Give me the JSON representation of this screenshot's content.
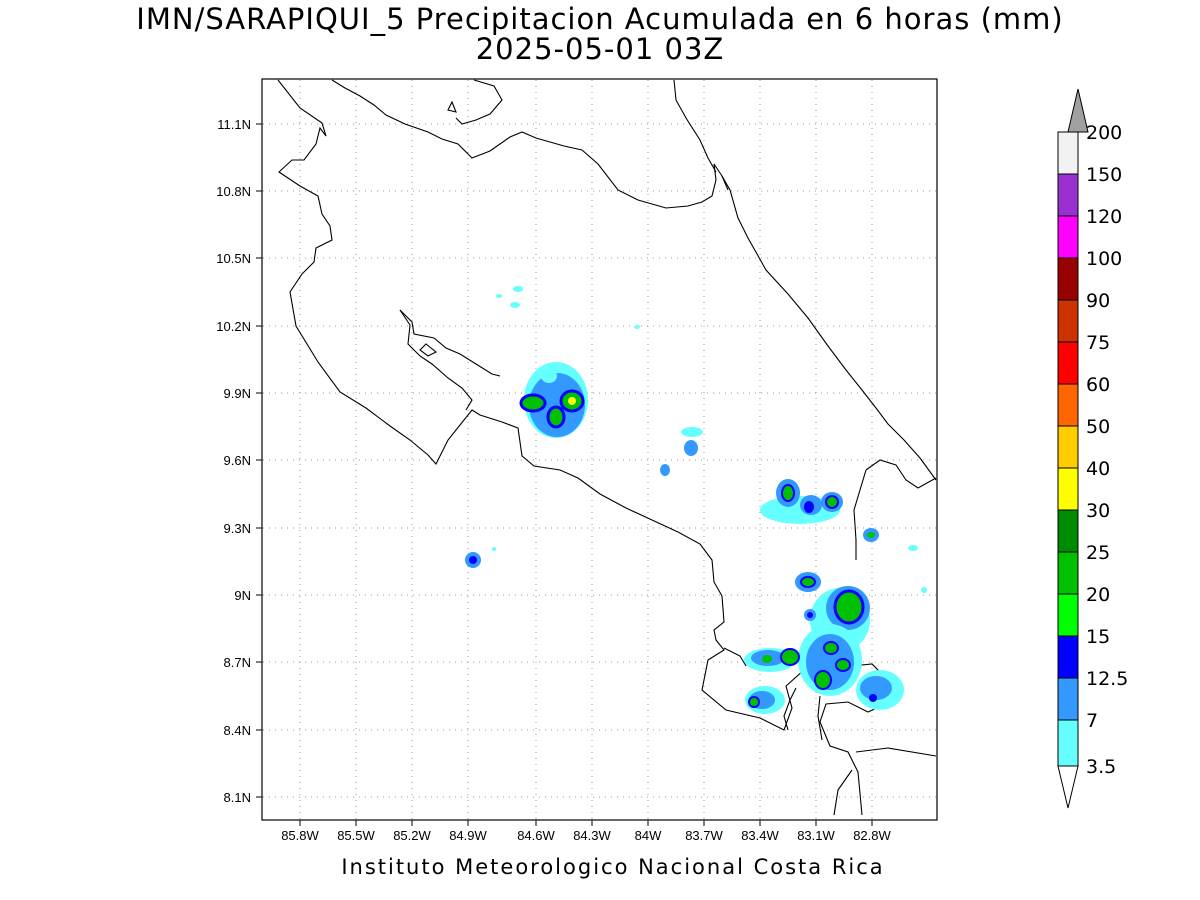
{
  "title": {
    "line1": "IMN/SARAPIQUI_5 Precipitacion Acumulada en 6 horas (mm)",
    "line2": "2025-05-01 03Z"
  },
  "footer": "Instituto Meteorologico Nacional Costa Rica",
  "map": {
    "lon_ticks": [
      "85.8W",
      "85.5W",
      "85.2W",
      "84.9W",
      "84.6W",
      "84.3W",
      "84W",
      "83.7W",
      "83.4W",
      "83.1W",
      "82.8W"
    ],
    "lat_ticks": [
      "11.1N",
      "10.8N",
      "10.5N",
      "10.2N",
      "9.9N",
      "9.6N",
      "9.3N",
      "9N",
      "8.7N",
      "8.4N",
      "8.1N"
    ],
    "grid": true,
    "coastline_color": "#000000"
  },
  "legend": {
    "labels": [
      "200",
      "150",
      "120",
      "100",
      "90",
      "75",
      "60",
      "50",
      "40",
      "30",
      "25",
      "20",
      "15",
      "12.5",
      "7",
      "3.5"
    ],
    "colors": [
      "#f2f2f2",
      "#9b30d0",
      "#ff00ff",
      "#990000",
      "#cc3300",
      "#ff0000",
      "#ff6600",
      "#ffcc00",
      "#ffff00",
      "#008c00",
      "#00c000",
      "#00ff00",
      "#0000ff",
      "#3399ff",
      "#66ffff"
    ],
    "over_color": "#a0a0a0",
    "under_color": "#ffffff"
  },
  "precip_cells": [
    {
      "region": "84.65W 9.85N",
      "level_color": "#00c000"
    },
    {
      "region": "84.45W 9.85N",
      "level_color": "#ffff00"
    },
    {
      "region": "84.5W 9.78N",
      "level_color": "#00c000"
    },
    {
      "region": "83.25W 9.45N",
      "level_color": "#00c000"
    },
    {
      "region": "83.05W 9.4N",
      "level_color": "#00c000"
    },
    {
      "region": "82.95W 8.95N",
      "level_color": "#00c000"
    },
    {
      "region": "83.0W 8.7N",
      "level_color": "#00c000"
    },
    {
      "region": "83.35W 8.72N",
      "level_color": "#00c000"
    }
  ]
}
